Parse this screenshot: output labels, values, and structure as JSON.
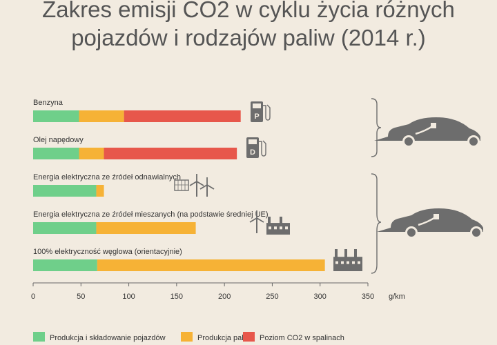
{
  "title_lines": [
    "Zakres emisji CO2 w cyklu życia różnych",
    "pojazdów i rodzajów paliw (2014 r.)"
  ],
  "colors": {
    "production_vehicle": "#6fcf8a",
    "fuel_production": "#f6b236",
    "exhaust": "#e7574b",
    "background": "#f2ebe0",
    "icon": "#6d6d6d"
  },
  "chart_data": {
    "type": "bar",
    "orientation": "horizontal",
    "stacked": true,
    "title": "Zakres emisji CO2 w cyklu życia różnych pojazdów i rodzajów paliw (2014 r.)",
    "categories": [
      "Benzyna",
      "Olej napędowy",
      "Energia elektryczna ze źródeł odnawialnych",
      "Energia elektryczna ze źródeł mieszanych (na podstawie średniej UE)",
      "100% elektryczność węglowa (orientacyjnie)"
    ],
    "series": [
      {
        "name": "Produkcja i składowanie pojazdów",
        "values": [
          48,
          48,
          66,
          66,
          67
        ]
      },
      {
        "name": "Produkcja paliw",
        "values": [
          47,
          26,
          8,
          104,
          238
        ]
      },
      {
        "name": "Poziom CO2 w spalinach",
        "values": [
          122,
          139,
          0,
          0,
          0
        ]
      }
    ],
    "xlim": [
      0,
      350
    ],
    "xticks": [
      0,
      50,
      100,
      150,
      200,
      250,
      300,
      350
    ],
    "xlabel": "g/km",
    "legend_position": "bottom"
  },
  "icons": {
    "rows": [
      "petrol-pump-p-icon",
      "diesel-pump-d-icon",
      "solar-wind-icon",
      "wind-factory-icon",
      "factory-icon"
    ],
    "groups": [
      "combustion-car-icon",
      "electric-car-icon"
    ],
    "pump_letters": [
      "P",
      "D"
    ]
  }
}
